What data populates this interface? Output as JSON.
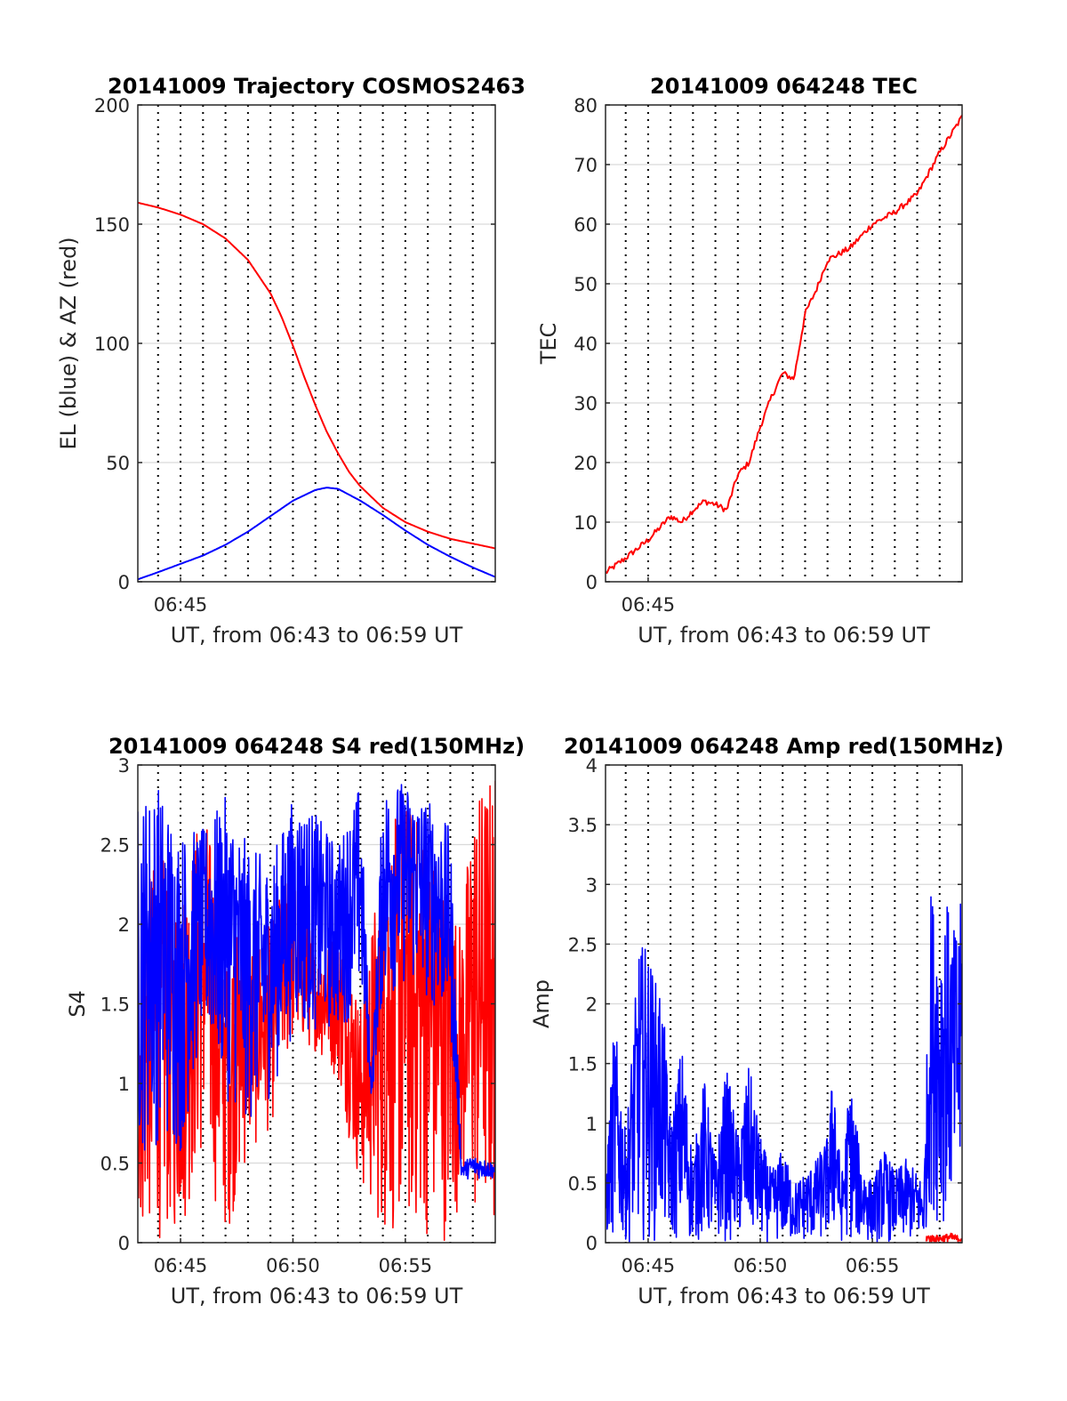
{
  "figure": {
    "colors": {
      "red": "#ff0000",
      "blue": "#0000ff",
      "grid": "#d9d9d9",
      "dotted": "#000000",
      "axis": "#262626"
    }
  },
  "chart_data": [
    {
      "type": "line",
      "title": "20141009 Trajectory COSMOS2463",
      "xlabel": "UT, from 06:43 to 06:59 UT",
      "ylabel": "EL (blue) & AZ (red)",
      "x_unit": "minutes of UT hour 06",
      "xlim": [
        43.1,
        59.0
      ],
      "ylim": [
        0,
        200
      ],
      "yticks": [
        0,
        50,
        100,
        150,
        200
      ],
      "xticks": [
        {
          "value": 45,
          "label": "06:45"
        }
      ],
      "grid": true,
      "series": [
        {
          "color": "#ff0000",
          "x": [
            43.1,
            44,
            45,
            46,
            47,
            48,
            49,
            49.5,
            50,
            50.5,
            51,
            51.5,
            52,
            52.5,
            53,
            54,
            55,
            56,
            57,
            58,
            59
          ],
          "y": [
            159,
            157,
            154,
            150,
            144,
            135,
            121,
            111,
            99,
            86,
            74,
            63,
            54,
            46,
            40,
            31,
            25,
            21,
            18,
            16,
            14
          ]
        },
        {
          "color": "#0000ff",
          "x": [
            43.1,
            44,
            45,
            46,
            47,
            48,
            49,
            50,
            51,
            51.5,
            52,
            53,
            54,
            55,
            56,
            57,
            58,
            59
          ],
          "y": [
            1,
            4,
            7.5,
            11,
            15.5,
            21,
            27.5,
            34,
            38.5,
            39.5,
            39,
            34,
            28,
            21.5,
            15.5,
            10.5,
            6,
            2
          ]
        }
      ]
    },
    {
      "type": "line",
      "title": "20141009 064248 TEC",
      "xlabel": "UT, from 06:43 to 06:59 UT",
      "ylabel": "TEC",
      "x_unit": "minutes of UT hour 06",
      "xlim": [
        43.1,
        59.0
      ],
      "ylim": [
        0,
        80
      ],
      "yticks": [
        0,
        10,
        20,
        30,
        40,
        50,
        60,
        70,
        80
      ],
      "xticks": [
        {
          "value": 45,
          "label": "06:45"
        }
      ],
      "grid": true,
      "series": [
        {
          "color": "#ff0000",
          "noise": 0.5,
          "x": [
            43.1,
            44,
            45,
            46,
            46.5,
            47,
            47.5,
            48,
            48.5,
            49,
            49.5,
            50,
            50.5,
            51,
            51.5,
            52,
            52.5,
            53,
            54,
            55,
            56,
            57,
            58,
            59
          ],
          "y": [
            1.5,
            4,
            7,
            11,
            10,
            12,
            13.5,
            13,
            12,
            18,
            20,
            26,
            31,
            35,
            34,
            45,
            49,
            54,
            56,
            60,
            62,
            65,
            72,
            78
          ]
        }
      ]
    },
    {
      "type": "line",
      "title": "20141009 064248 S4 red(150MHz)",
      "xlabel": "UT, from 06:43 to 06:59 UT",
      "ylabel": "S4",
      "x_unit": "minutes of UT hour 06",
      "xlim": [
        43.1,
        59.0
      ],
      "ylim": [
        0,
        3
      ],
      "yticks": [
        0,
        0.5,
        1,
        1.5,
        2,
        2.5,
        3
      ],
      "xticks": [
        {
          "value": 45,
          "label": "06:45"
        },
        {
          "value": 50,
          "label": "06:50"
        },
        {
          "value": 55,
          "label": "06:55"
        }
      ],
      "grid": true,
      "series": [
        {
          "color": "#ff0000",
          "rendering": "dense oscillating trace",
          "x": [
            43.1,
            44,
            45,
            46,
            47,
            48,
            49,
            50,
            51,
            52,
            53,
            54,
            55,
            56,
            57,
            57.5,
            58,
            59
          ],
          "y": [
            2.0,
            2.5,
            2.2,
            2.8,
            2.0,
            1.9,
            2.0,
            2.5,
            1.8,
            2.0,
            1.5,
            2.5,
            2.8,
            2.6,
            2.2,
            2.0,
            2.8,
            3.0
          ],
          "y_low": [
            0,
            0,
            0,
            0.5,
            0,
            0.5,
            0.7,
            1.2,
            1.2,
            1.0,
            0.3,
            0,
            0,
            0,
            0,
            0.3,
            0,
            0
          ]
        },
        {
          "color": "#0000ff",
          "rendering": "dense oscillating trace",
          "x": [
            43.1,
            44,
            45,
            46,
            47,
            48,
            49,
            50,
            51,
            52,
            53,
            53.5,
            54,
            55,
            56,
            57,
            57.5,
            58,
            59
          ],
          "y": [
            2.8,
            2.9,
            2.6,
            2.6,
            2.8,
            2.5,
            2.4,
            2.8,
            2.7,
            2.5,
            2.9,
            1.0,
            2.9,
            2.9,
            2.8,
            2.6,
            0.5,
            0.55,
            0.5
          ],
          "y_low": [
            0.5,
            0.6,
            0.5,
            1.3,
            0.9,
            0.7,
            0.9,
            1.3,
            1.3,
            1.3,
            1.5,
            0.9,
            1.5,
            1.6,
            1.5,
            1.3,
            0.4,
            0.4,
            0.4
          ]
        }
      ]
    },
    {
      "type": "line",
      "title": "20141009 064248 Amp red(150MHz)",
      "xlabel": "UT, from 06:43 to 06:59 UT",
      "ylabel": "Amp",
      "x_unit": "minutes of UT hour 06",
      "xlim": [
        43.1,
        59.0
      ],
      "ylim": [
        0,
        4
      ],
      "yticks": [
        0,
        0.5,
        1,
        1.5,
        2,
        2.5,
        3,
        3.5,
        4
      ],
      "xticks": [
        {
          "value": 45,
          "label": "06:45"
        },
        {
          "value": 50,
          "label": "06:50"
        },
        {
          "value": 55,
          "label": "06:55"
        }
      ],
      "grid": true,
      "series": [
        {
          "color": "#0000ff",
          "rendering": "dense oscillating trace",
          "x": [
            43.1,
            43.5,
            44,
            44.3,
            44.6,
            45,
            45.3,
            45.6,
            46,
            46.5,
            47,
            47.5,
            48,
            48.5,
            49,
            49.5,
            50,
            50.5,
            51,
            51.5,
            52,
            52.5,
            53,
            53.3,
            53.6,
            54,
            54.5,
            55,
            55.5,
            56,
            56.5,
            57,
            57.3,
            57.6,
            58,
            58.3,
            58.6,
            59
          ],
          "y": [
            0.55,
            1.9,
            0.9,
            1.7,
            2.5,
            2.5,
            2.2,
            2.2,
            1.0,
            1.7,
            0.7,
            1.4,
            0.7,
            1.5,
            0.9,
            1.5,
            0.9,
            0.6,
            0.8,
            0.5,
            0.6,
            0.7,
            0.9,
            1.6,
            0.5,
            1.4,
            0.7,
            0.5,
            0.8,
            0.6,
            0.7,
            0.6,
            0.5,
            3.0,
            2.7,
            2.9,
            2.6,
            2.9
          ],
          "y_low": [
            0,
            0,
            0,
            0,
            0,
            0,
            0,
            0,
            0,
            0,
            0,
            0,
            0,
            0,
            0,
            0,
            0,
            0,
            0,
            0,
            0,
            0,
            0,
            0,
            0,
            0,
            0,
            0,
            0,
            0,
            0,
            0,
            0,
            0.3,
            0.1,
            0.2,
            0.1,
            0.1
          ]
        },
        {
          "color": "#ff0000",
          "rendering": "dense oscillating trace",
          "x": [
            57.4,
            58,
            58.5,
            59
          ],
          "y": [
            0.07,
            0.06,
            0.08,
            0.05
          ],
          "y_low": [
            0,
            0,
            0,
            0
          ]
        }
      ]
    }
  ]
}
